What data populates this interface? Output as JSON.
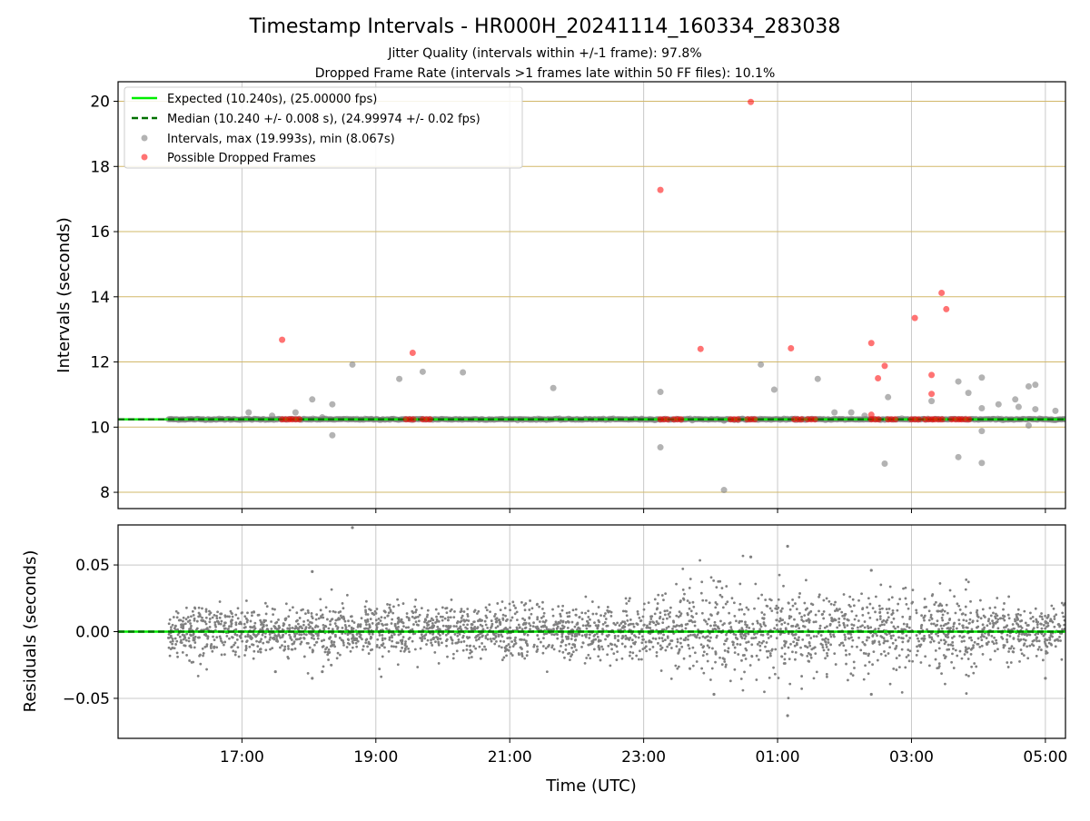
{
  "title": "Timestamp Intervals - HR000H_20241114_160334_283038",
  "subtitles": [
    "Jitter Quality (intervals within +/-1 frame): 97.8%",
    "Dropped Frame Rate (intervals >1 frames late within 50 FF files): 10.1%"
  ],
  "xlabel": "Time (UTC)",
  "legend": {
    "placement": "upper-left",
    "expected": "Expected (10.240s), (25.00000 fps)",
    "median": "Median (10.240 +/- 0.008 s), (24.99974 +/- 0.02 fps)",
    "intervals": "Intervals, max (19.993s), min (8.067s)",
    "dropped": "Possible Dropped Frames"
  },
  "colors": {
    "expected": "#00ee00",
    "median": "#007000",
    "intervals": "#808080",
    "dropped": "#ff0000",
    "hgrid_top": "#d2b86a",
    "vgrid": "#c8c8c8"
  },
  "chart_data": [
    {
      "type": "scatter",
      "panel": "intervals",
      "ylabel": "Intervals (seconds)",
      "x_unit": "hours since 16:00 UTC",
      "xlim": [
        -0.85,
        13.3
      ],
      "ylim": [
        7.5,
        20.6
      ],
      "yticks": [
        8,
        10,
        12,
        14,
        16,
        18,
        20
      ],
      "xticks": [
        1,
        3,
        5,
        7,
        9,
        11,
        13
      ],
      "xtick_labels": [
        "17:00",
        "19:00",
        "21:00",
        "23:00",
        "01:00",
        "03:00",
        "05:00"
      ],
      "grid": true,
      "expected": 10.24,
      "median": 10.24,
      "baseline_range": [
        -0.1,
        13.3
      ],
      "interval_outliers": [
        [
          1.1,
          10.45
        ],
        [
          1.45,
          10.35
        ],
        [
          1.8,
          10.45
        ],
        [
          2.05,
          10.85
        ],
        [
          2.2,
          10.3
        ],
        [
          2.35,
          10.7
        ],
        [
          2.35,
          9.75
        ],
        [
          2.65,
          11.92
        ],
        [
          3.35,
          11.48
        ],
        [
          3.7,
          11.7
        ],
        [
          4.3,
          11.68
        ],
        [
          5.65,
          11.2
        ],
        [
          7.25,
          11.08
        ],
        [
          7.25,
          9.38
        ],
        [
          8.2,
          10.2
        ],
        [
          8.2,
          8.07
        ],
        [
          8.75,
          11.92
        ],
        [
          8.95,
          11.15
        ],
        [
          9.6,
          11.48
        ],
        [
          9.85,
          10.45
        ],
        [
          10.1,
          10.45
        ],
        [
          10.3,
          10.35
        ],
        [
          10.6,
          8.88
        ],
        [
          10.65,
          10.92
        ],
        [
          11.3,
          10.8
        ],
        [
          11.7,
          11.4
        ],
        [
          11.7,
          9.08
        ],
        [
          11.85,
          11.05
        ],
        [
          12.05,
          11.52
        ],
        [
          12.05,
          10.58
        ],
        [
          12.05,
          9.88
        ],
        [
          12.05,
          8.9
        ],
        [
          12.3,
          10.7
        ],
        [
          12.55,
          10.85
        ],
        [
          12.6,
          10.62
        ],
        [
          12.75,
          10.05
        ],
        [
          12.75,
          11.25
        ],
        [
          12.85,
          11.3
        ],
        [
          12.85,
          10.55
        ],
        [
          13.15,
          10.5
        ]
      ],
      "dropped_frames": [
        [
          1.6,
          12.68
        ],
        [
          3.55,
          12.28
        ],
        [
          7.85,
          12.4
        ],
        [
          7.25,
          17.28
        ],
        [
          8.6,
          19.98
        ],
        [
          9.2,
          12.42
        ],
        [
          10.4,
          12.58
        ],
        [
          10.5,
          11.5
        ],
        [
          10.6,
          11.88
        ],
        [
          10.4,
          10.38
        ],
        [
          11.05,
          13.35
        ],
        [
          11.3,
          11.6
        ],
        [
          11.3,
          11.02
        ],
        [
          11.45,
          14.12
        ],
        [
          11.52,
          13.62
        ],
        [
          1.6,
          10.24
        ],
        [
          1.75,
          10.24
        ],
        [
          3.45,
          10.24
        ],
        [
          3.7,
          10.24
        ],
        [
          7.25,
          10.24
        ],
        [
          7.45,
          10.24
        ],
        [
          8.3,
          10.24
        ],
        [
          8.55,
          10.24
        ],
        [
          9.25,
          10.24
        ],
        [
          9.45,
          10.24
        ],
        [
          10.4,
          10.24
        ],
        [
          10.65,
          10.24
        ],
        [
          11.0,
          10.24
        ],
        [
          11.2,
          10.24
        ],
        [
          11.35,
          10.24
        ],
        [
          11.6,
          10.24
        ],
        [
          11.75,
          10.24
        ]
      ]
    },
    {
      "type": "scatter",
      "panel": "residuals",
      "ylabel": "Residuals (seconds)",
      "x_unit": "hours since 16:00 UTC",
      "xlim": [
        -0.85,
        13.3
      ],
      "ylim": [
        -0.08,
        0.08
      ],
      "yticks": [
        -0.05,
        0.0,
        0.05
      ],
      "ytick_labels": [
        "−0.05",
        "0.00",
        "0.05"
      ],
      "grid": true,
      "zero_line": 0.0,
      "approx_points": 3000,
      "x_range": [
        -0.1,
        13.3
      ],
      "noise_std_early": 0.01,
      "noise_std_late": 0.015,
      "extremes": [
        [
          2.65,
          0.078
        ],
        [
          2.05,
          0.045
        ],
        [
          2.05,
          -0.035
        ],
        [
          9.15,
          0.064
        ],
        [
          9.15,
          -0.063
        ],
        [
          8.6,
          0.056
        ],
        [
          8.05,
          -0.047
        ],
        [
          10.4,
          -0.047
        ],
        [
          10.4,
          0.046
        ],
        [
          13.0,
          -0.035
        ],
        [
          1.5,
          -0.03
        ],
        [
          2.2,
          -0.03
        ]
      ]
    }
  ]
}
